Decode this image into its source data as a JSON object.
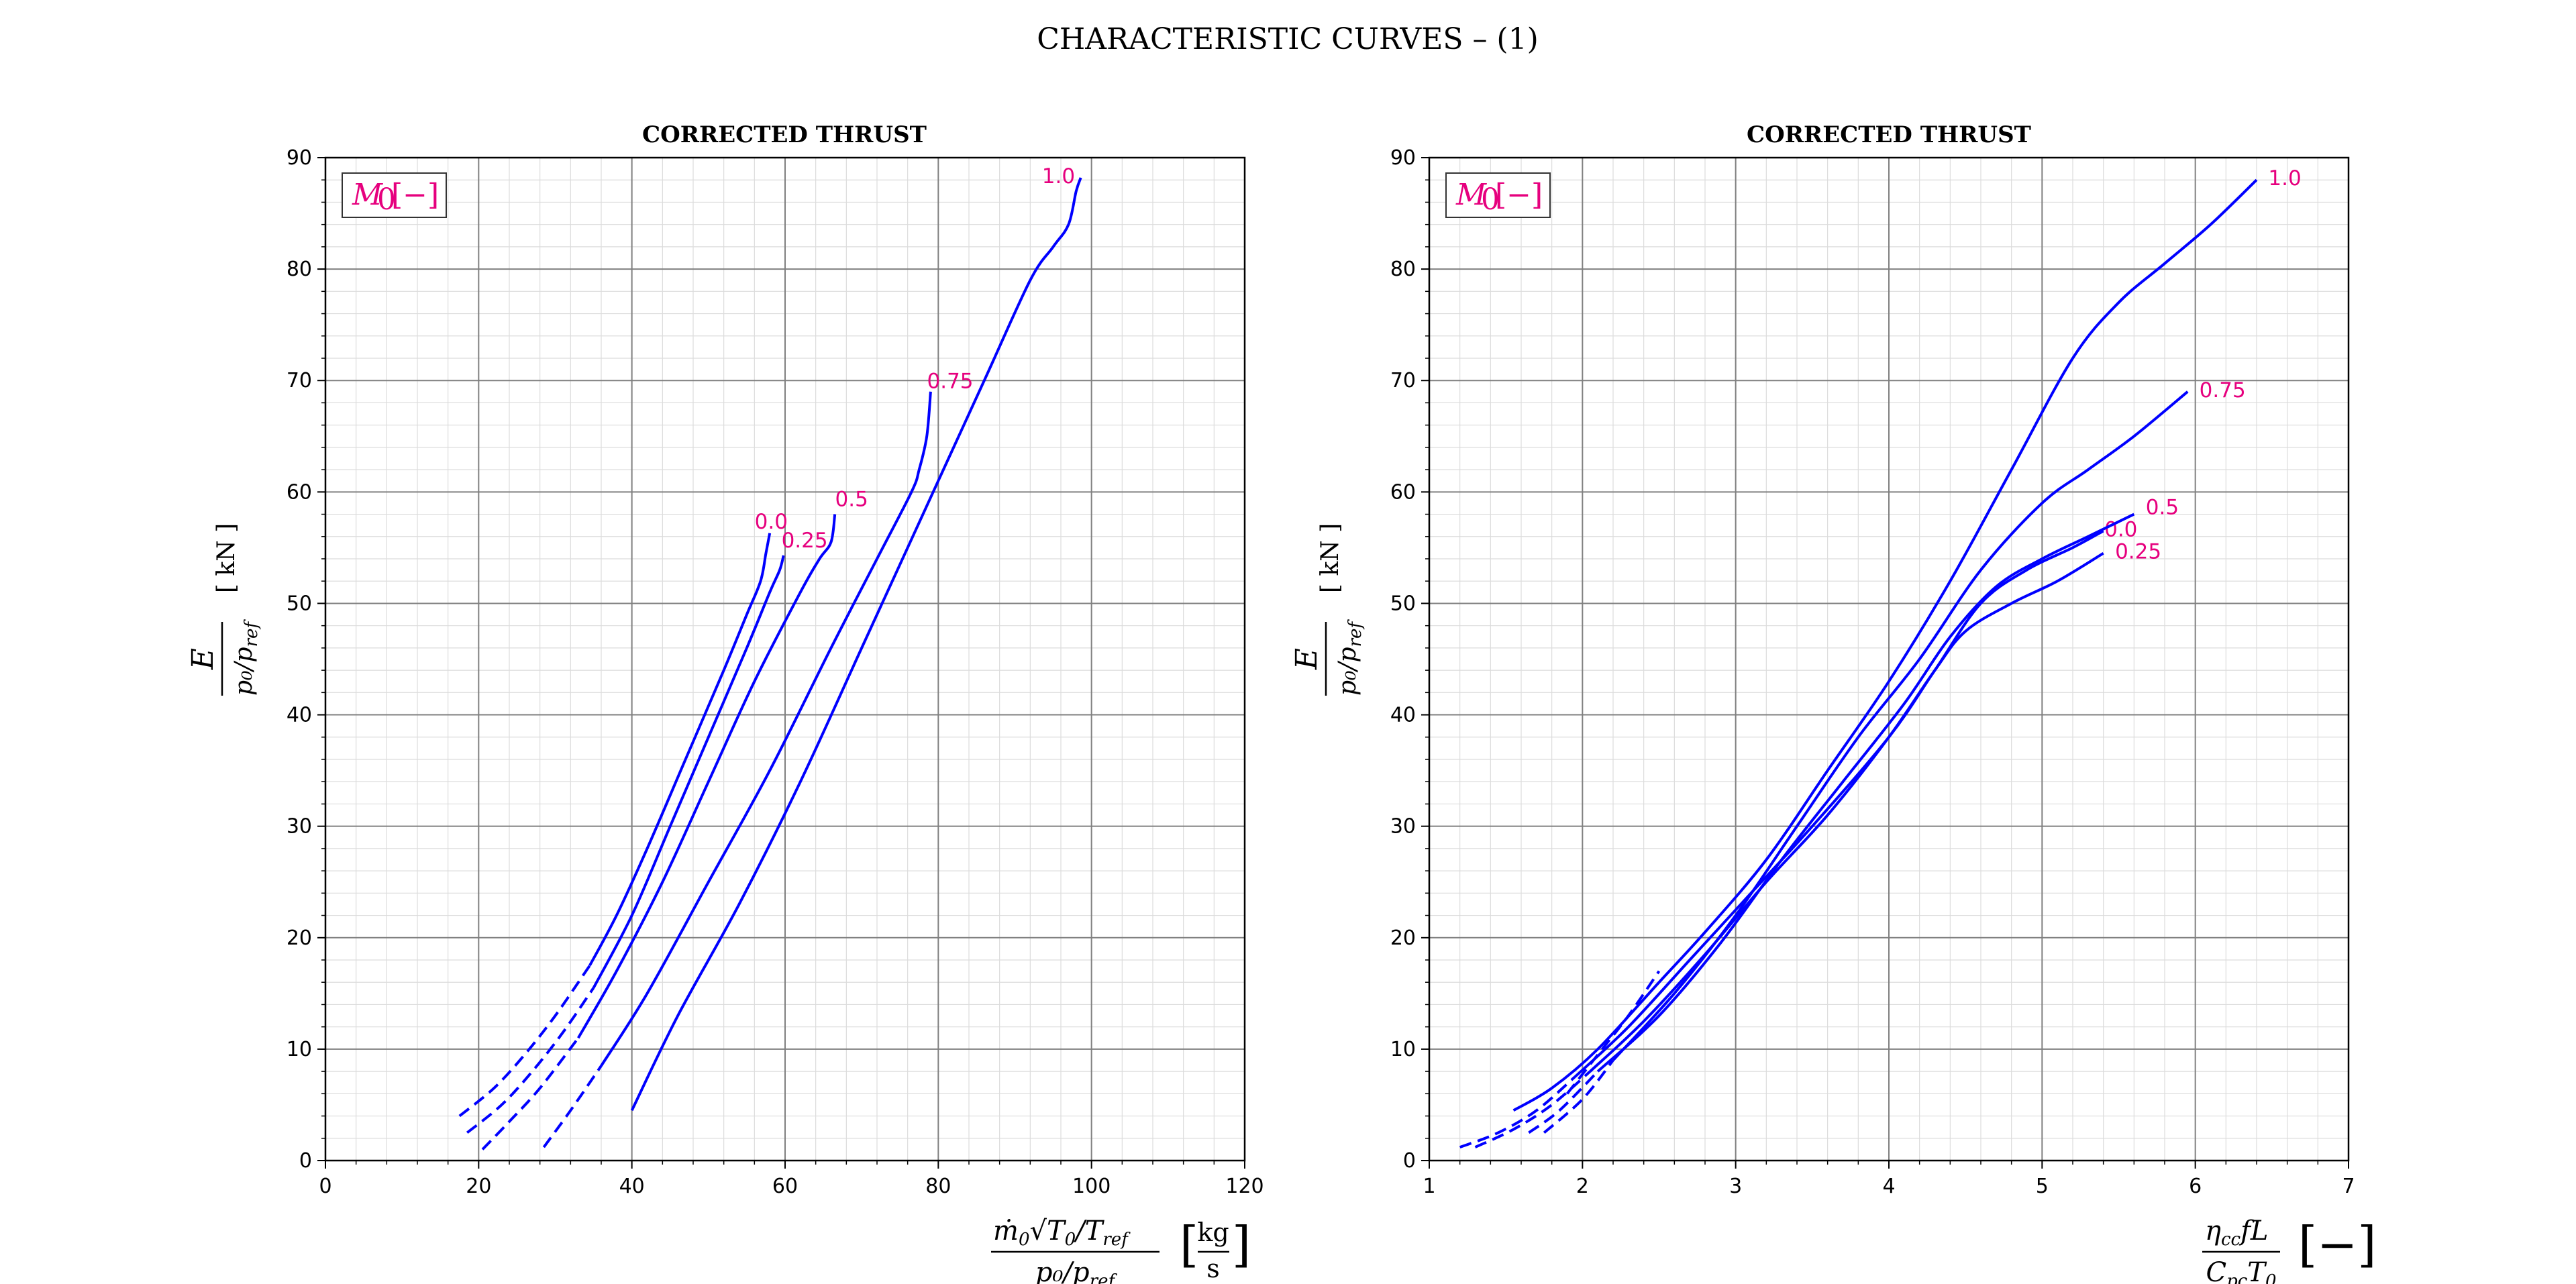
{
  "figure_title": "CHARACTERISTIC CURVES  – (1)",
  "chart_data": [
    {
      "type": "line",
      "title": "CORRECTED THRUST",
      "legend_title": "M0 [−]",
      "legend_placement": "top-left",
      "xlim": [
        0,
        120
      ],
      "ylim": [
        0,
        90
      ],
      "xticks": [
        0,
        20,
        40,
        60,
        80,
        100,
        120
      ],
      "yticks": [
        0,
        10,
        20,
        30,
        40,
        50,
        60,
        70,
        80,
        90
      ],
      "grid": true,
      "minor_grid": true,
      "series": [
        {
          "name": "0.0",
          "dashed": [
            [
              17.5,
              4
            ],
            [
              22,
              6.5
            ],
            [
              26,
              9.5
            ],
            [
              30,
              13
            ],
            [
              34.5,
              17.5
            ]
          ],
          "solid": [
            [
              34.5,
              17.5
            ],
            [
              38,
              22
            ],
            [
              42,
              28
            ],
            [
              47,
              36
            ],
            [
              52,
              44
            ],
            [
              55,
              49
            ],
            [
              56.8,
              52
            ],
            [
              57.5,
              54.5
            ],
            [
              58,
              56.3
            ]
          ],
          "label_at": [
            55.5,
            57.2
          ]
        },
        {
          "name": "0.25",
          "dashed": [
            [
              18.5,
              2.5
            ],
            [
              23,
              5
            ],
            [
              27,
              8
            ],
            [
              31,
              11.5
            ],
            [
              35,
              15.5
            ]
          ],
          "solid": [
            [
              35,
              15.5
            ],
            [
              40,
              22
            ],
            [
              45,
              30
            ],
            [
              50,
              38
            ],
            [
              55,
              46
            ],
            [
              58,
              51
            ],
            [
              59.3,
              53
            ],
            [
              59.8,
              54.3
            ]
          ],
          "label_at": [
            59,
            55.5
          ]
        },
        {
          "name": "0.5",
          "dashed": [
            [
              20.5,
              1
            ],
            [
              24,
              3.5
            ],
            [
              28,
              6.5
            ],
            [
              33,
              11
            ]
          ],
          "solid": [
            [
              33,
              11
            ],
            [
              38,
              17
            ],
            [
              44,
              25
            ],
            [
              50,
              34
            ],
            [
              56,
              43
            ],
            [
              62,
              51
            ],
            [
              64.5,
              54
            ],
            [
              66,
              55.5
            ],
            [
              66.5,
              58
            ]
          ],
          "label_at": [
            66,
            59.2
          ]
        },
        {
          "name": "0.75",
          "dashed": [
            [
              28.5,
              1.2
            ],
            [
              32,
              4.5
            ],
            [
              36,
              8.5
            ]
          ],
          "solid": [
            [
              36,
              8.5
            ],
            [
              42,
              15
            ],
            [
              50,
              25
            ],
            [
              58,
              35
            ],
            [
              66,
              46
            ],
            [
              72,
              54
            ],
            [
              76.5,
              60
            ],
            [
              77.5,
              62
            ],
            [
              78.5,
              65
            ],
            [
              79,
              69
            ]
          ],
          "label_at": [
            78,
            69.8
          ]
        },
        {
          "name": "1.0",
          "dashed": [],
          "solid": [
            [
              40,
              4.5
            ],
            [
              46,
              13
            ],
            [
              54,
              23
            ],
            [
              62,
              34
            ],
            [
              70,
              46
            ],
            [
              78,
              58
            ],
            [
              86,
              70
            ],
            [
              92,
              79
            ],
            [
              95,
              82
            ],
            [
              97,
              84
            ],
            [
              98,
              87
            ],
            [
              98.6,
              88.2
            ]
          ],
          "label_at": [
            93,
            88.2
          ]
        }
      ]
    },
    {
      "type": "line",
      "title": "CORRECTED THRUST",
      "legend_title": "M0 [−]",
      "legend_placement": "top-left",
      "xlim": [
        1,
        7
      ],
      "ylim": [
        0,
        90
      ],
      "xticks": [
        1,
        2,
        3,
        4,
        5,
        6,
        7
      ],
      "yticks": [
        0,
        10,
        20,
        30,
        40,
        50,
        60,
        70,
        80,
        90
      ],
      "grid": true,
      "minor_grid": true,
      "series": [
        {
          "name": "0.0",
          "dashed": [
            [
              1.2,
              1.2
            ],
            [
              1.45,
              2.5
            ],
            [
              1.7,
              4.5
            ],
            [
              1.95,
              7.5
            ]
          ],
          "solid": [
            [
              1.95,
              7.5
            ],
            [
              2.3,
              12
            ],
            [
              2.7,
              18
            ],
            [
              3.1,
              24
            ],
            [
              3.5,
              30
            ],
            [
              4,
              38
            ],
            [
              4.3,
              44
            ],
            [
              4.6,
              50
            ],
            [
              4.9,
              53
            ],
            [
              5.2,
              55
            ],
            [
              5.4,
              56.5
            ]
          ],
          "label_at": [
            5.38,
            56.5
          ]
        },
        {
          "name": "0.25",
          "dashed": [
            [
              1.3,
              1.2
            ],
            [
              1.55,
              2.8
            ],
            [
              1.8,
              5
            ],
            [
              2.05,
              8
            ]
          ],
          "solid": [
            [
              2.05,
              8
            ],
            [
              2.4,
              12.5
            ],
            [
              2.8,
              18.5
            ],
            [
              3.2,
              25
            ],
            [
              3.6,
              31
            ],
            [
              4,
              38
            ],
            [
              4.3,
              44
            ],
            [
              4.5,
              47.5
            ],
            [
              4.8,
              50
            ],
            [
              5.1,
              52
            ],
            [
              5.4,
              54.5
            ]
          ],
          "label_at": [
            5.45,
            54.5
          ]
        },
        {
          "name": "0.5",
          "dashed": [
            [
              1.65,
              2.5
            ],
            [
              1.85,
              4.5
            ],
            [
              2.1,
              8
            ]
          ],
          "solid": [
            [
              2.1,
              8
            ],
            [
              2.5,
              13
            ],
            [
              2.9,
              19.5
            ],
            [
              3.3,
              27
            ],
            [
              3.7,
              34
            ],
            [
              4.1,
              41
            ],
            [
              4.4,
              47
            ],
            [
              4.7,
              51.5
            ],
            [
              5,
              54
            ],
            [
              5.3,
              56
            ],
            [
              5.6,
              58
            ]
          ],
          "label_at": [
            5.65,
            58.5
          ]
        },
        {
          "name": "0.75",
          "dashed": [
            [
              1.75,
              2.5
            ],
            [
              2.0,
              5.5
            ],
            [
              2.2,
              9
            ]
          ],
          "solid": [
            [
              2.2,
              9
            ],
            [
              2.6,
              15
            ],
            [
              3,
              22
            ],
            [
              3.4,
              30
            ],
            [
              3.8,
              38
            ],
            [
              4.2,
              45
            ],
            [
              4.6,
              53
            ],
            [
              5,
              59
            ],
            [
              5.3,
              62
            ],
            [
              5.6,
              65
            ],
            [
              5.95,
              69
            ]
          ],
          "label_at": [
            6,
            69
          ]
        },
        {
          "name": "1.0",
          "dashed": [
            [
              1.9,
              6
            ],
            [
              2.1,
              9.5
            ],
            [
              2.3,
              13
            ],
            [
              2.5,
              17
            ]
          ],
          "solid": [
            [
              1.55,
              4.5
            ],
            [
              1.8,
              6.5
            ],
            [
              2.1,
              10
            ],
            [
              2.5,
              16
            ],
            [
              2.8,
              20.5
            ],
            [
              3.2,
              27
            ],
            [
              3.6,
              35
            ],
            [
              4,
              43
            ],
            [
              4.4,
              52
            ],
            [
              4.8,
              62
            ],
            [
              5.2,
              72
            ],
            [
              5.5,
              77
            ],
            [
              5.8,
              80.5
            ],
            [
              6.1,
              84
            ],
            [
              6.4,
              88
            ]
          ],
          "label_at": [
            6.45,
            88
          ]
        }
      ]
    }
  ],
  "axes": [
    {
      "ylabel": "E / (p0/pref) [kN]",
      "xlabel": "ṁ0 √(T0/Tref) / (p0/pref) [kg/s]"
    },
    {
      "ylabel": "E / (p0/pref) [kN]",
      "xlabel": "ηcc f L / (Cpc T0) [−]"
    }
  ],
  "colors": {
    "line": "#0000ff",
    "label": "#e6007e",
    "grid_major": "#808080",
    "grid_minor": "#dcdcdc"
  }
}
